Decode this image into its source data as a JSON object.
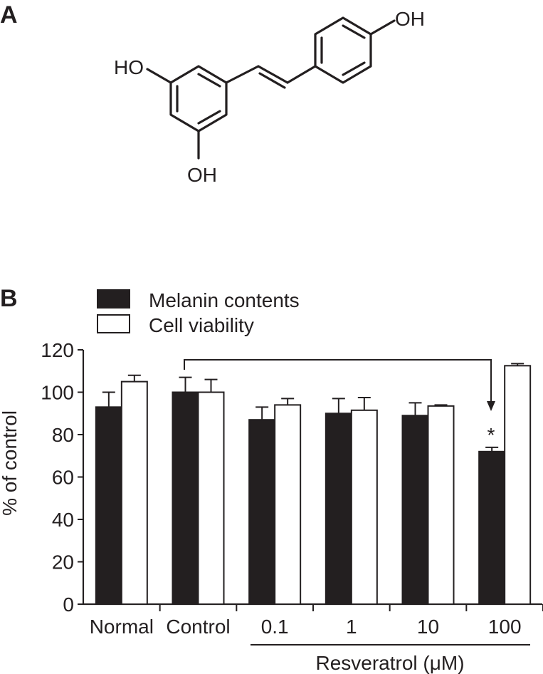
{
  "panels": {
    "a_label": "A",
    "b_label": "B"
  },
  "molecule": {
    "oh_top_right": "OH",
    "oh_left": "HO",
    "oh_bottom": "OH"
  },
  "chart_data": {
    "type": "bar",
    "categories": [
      "Normal",
      "Control",
      "0.1",
      "1",
      "10",
      "100"
    ],
    "series": [
      {
        "name": "Melanin contents",
        "color": "#231f20",
        "values": [
          93,
          100,
          87,
          90,
          89,
          72
        ],
        "errors": [
          7,
          7,
          6,
          7,
          6,
          2
        ]
      },
      {
        "name": "Cell viability",
        "color": "#ffffff",
        "values": [
          105,
          100,
          94,
          91.5,
          93.5,
          112.5
        ],
        "errors": [
          3,
          6,
          3,
          6,
          0.5,
          1
        ]
      }
    ],
    "ylabel": "% of control",
    "ylim": [
      0,
      120
    ],
    "yticks": [
      0,
      20,
      40,
      60,
      80,
      100,
      120
    ],
    "group_label": "Resveratrol (μM)",
    "annotation": "*",
    "legend_position": "top-left",
    "grid": false
  }
}
